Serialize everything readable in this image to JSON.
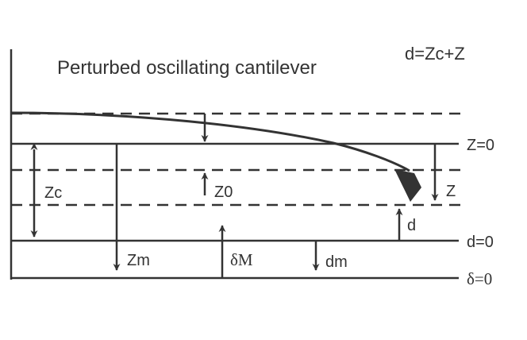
{
  "title": "Perturbed oscillating cantilever",
  "formula": "d=Zc+Z",
  "line_labels": {
    "z_zero": "Z=0",
    "d_zero": "d=0",
    "delta_zero": "δ=0"
  },
  "quantity_labels": {
    "zc": "Zc",
    "z0": "Z0",
    "z": "Z",
    "d": "d",
    "zm": "Zm",
    "delta_m": "δM",
    "dm": "dm"
  },
  "colors": {
    "ink": "#333333",
    "background": "#ffffff"
  }
}
